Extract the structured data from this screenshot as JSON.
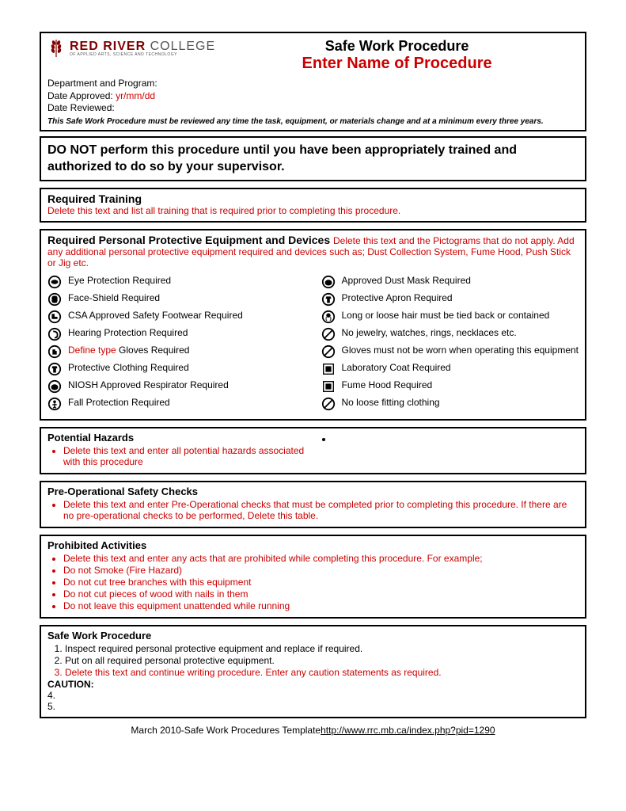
{
  "logo": {
    "red": "RED RIVER",
    "college": " COLLEGE",
    "sub": "OF APPLIED ARTS, SCIENCE AND TECHNOLOGY"
  },
  "title": {
    "line1": "Safe Work Procedure",
    "line2": "Enter Name of Procedure"
  },
  "meta": {
    "dept_label": "Department and Program:",
    "approved_label": "Date Approved:  ",
    "approved_value": "yr/mm/dd",
    "reviewed_label": "Date Reviewed:",
    "note": "This Safe Work Procedure must be reviewed any time the task, equipment, or materials change and at a minimum every three years."
  },
  "warn": "DO NOT perform this procedure until you have been appropriately trained and authorized to do so by your supervisor.",
  "training": {
    "title": "Required Training",
    "body": "Delete this text and list all training that is required prior to completing this procedure."
  },
  "ppe": {
    "title": "Required Personal Protective Equipment and Devices ",
    "note": "Delete this text and the Pictograms that do not apply.  Add any additional personal protective equipment required and devices such as; Dust Collection System, Fume Hood, Push Stick or Jig etc.",
    "left": [
      {
        "icon": "eye",
        "label": "Eye Protection Required"
      },
      {
        "icon": "face",
        "label": "Face-Shield Required"
      },
      {
        "icon": "boot",
        "label": "CSA Approved Safety Footwear Required"
      },
      {
        "icon": "ear",
        "label": "Hearing Protection Required"
      },
      {
        "icon": "glove",
        "pre": "Define type",
        "label": " Gloves Required"
      },
      {
        "icon": "suit",
        "label": "Protective Clothing Required"
      },
      {
        "icon": "resp",
        "label": "NIOSH Approved Respirator Required"
      },
      {
        "icon": "fall",
        "label": "Fall Protection Required"
      }
    ],
    "right": [
      {
        "icon": "mask",
        "label": "Approved Dust Mask Required"
      },
      {
        "icon": "apron",
        "label": "Protective Apron Required"
      },
      {
        "icon": "hair",
        "label": "Long or loose hair must be tied back or contained"
      },
      {
        "icon": "no",
        "label": "No jewelry, watches, rings, necklaces etc."
      },
      {
        "icon": "no",
        "label": "Gloves must not be worn when  operating this equipment"
      },
      {
        "icon": "coat",
        "label": "Laboratory Coat Required"
      },
      {
        "icon": "fume",
        "label": "Fume Hood Required"
      },
      {
        "icon": "no",
        "label": "No loose fitting clothing"
      }
    ]
  },
  "hazards": {
    "title": "Potential Hazards",
    "item": "Delete this text and enter all potential hazards associated with this procedure"
  },
  "preop": {
    "title": "Pre-Operational Safety Checks",
    "item": "Delete this text and enter Pre-Operational checks that must be completed prior to completing this procedure.  If there are no pre-operational checks to be performed, Delete this table."
  },
  "prohib": {
    "title": "Prohibited Activities",
    "items": [
      "Delete this text and enter any acts that are prohibited while completing this procedure.  For example;",
      "Do not Smoke (Fire Hazard)",
      "Do not cut tree branches with this equipment",
      "Do not cut pieces of wood with nails in them",
      "Do not leave this equipment unattended while running"
    ]
  },
  "swp": {
    "title": "Safe Work Procedure",
    "items": [
      {
        "text": "Inspect required personal protective equipment and replace if required."
      },
      {
        "text": "Put on all required personal protective equipment."
      },
      {
        "text": "Delete this text and continue writing procedure.  Enter any caution statements as required.",
        "red": true
      }
    ],
    "caution": "CAUTION:",
    "extra": [
      "4.",
      "5."
    ]
  },
  "footer": {
    "left": "March 2010-Safe Work Procedures Template",
    "link": "http://www.rrc.mb.ca/index.php?pid=1290"
  }
}
